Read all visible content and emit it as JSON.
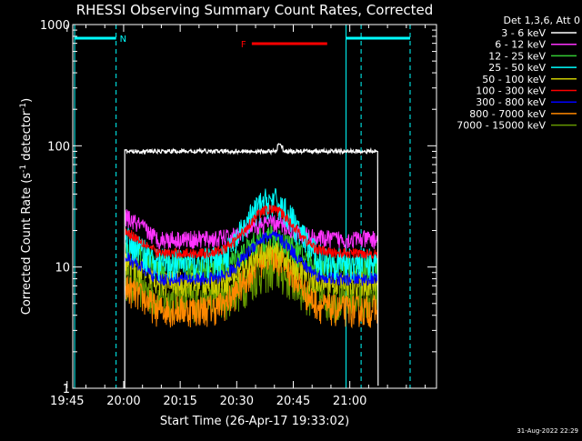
{
  "chart_data": {
    "type": "line",
    "title": "RHESSI Observing Summary Count Rates, Corrected",
    "xlabel": "Start Time (26-Apr-17 19:33:02)",
    "ylabel_main": "Corrected Count Rate (s",
    "ylabel_sup1": "-1",
    "ylabel_mid": " detector",
    "ylabel_sup2": "-1",
    "ylabel_end": ")",
    "yscale": "log",
    "ylim": [
      1,
      1000
    ],
    "xlim_minutes": [
      13.5,
      110
    ],
    "x_ticks": [
      {
        "t": 12.0,
        "label": "19:45"
      },
      {
        "t": 27.0,
        "label": "20:00"
      },
      {
        "t": 42.0,
        "label": "20:15"
      },
      {
        "t": 57.0,
        "label": "20:30"
      },
      {
        "t": 72.0,
        "label": "20:45"
      },
      {
        "t": 87.0,
        "label": "21:00"
      }
    ],
    "y_ticks": [
      {
        "v": 1,
        "label": "1"
      },
      {
        "v": 10,
        "label": "10"
      },
      {
        "v": 100,
        "label": "100"
      },
      {
        "v": 1000,
        "label": "1000"
      }
    ],
    "legend_header": "Det 1,3,6, Att 0",
    "series": [
      {
        "name": "3 - 6 keV",
        "color": "#ffffff",
        "base": 90,
        "amp": 0,
        "noise": 0.02
      },
      {
        "name": "6 - 12 keV",
        "color": "#ff33ff",
        "base": 17,
        "amp": 6,
        "noise": 0.07
      },
      {
        "name": "12 - 25 keV",
        "color": "#33cc33",
        "base": 10,
        "amp": 8,
        "noise": 0.1
      },
      {
        "name": "25 - 50 keV",
        "color": "#00ffff",
        "base": 11,
        "amp": 24,
        "noise": 0.12
      },
      {
        "name": "50 - 100 keV",
        "color": "#cccc00",
        "base": 7.5,
        "amp": 6,
        "noise": 0.1
      },
      {
        "name": "100 - 300 keV",
        "color": "#ff0000",
        "base": 13,
        "amp": 17,
        "noise": 0.04
      },
      {
        "name": "300 - 800 keV",
        "color": "#0000ff",
        "base": 8,
        "amp": 10,
        "noise": 0.05
      },
      {
        "name": "800 - 7000 keV",
        "color": "#ff8800",
        "base": 4.5,
        "amp": 8,
        "noise": 0.12
      },
      {
        "name": "7000 - 15000 keV",
        "color": "#669900",
        "base": 5.5,
        "amp": 4,
        "noise": 0.15
      }
    ],
    "annotations": {
      "night_label": "N",
      "flare_label": "F",
      "night_color": "#00ffff",
      "flare_color": "#ff0000"
    },
    "timestamp": "31-Aug-2022 22:29"
  }
}
